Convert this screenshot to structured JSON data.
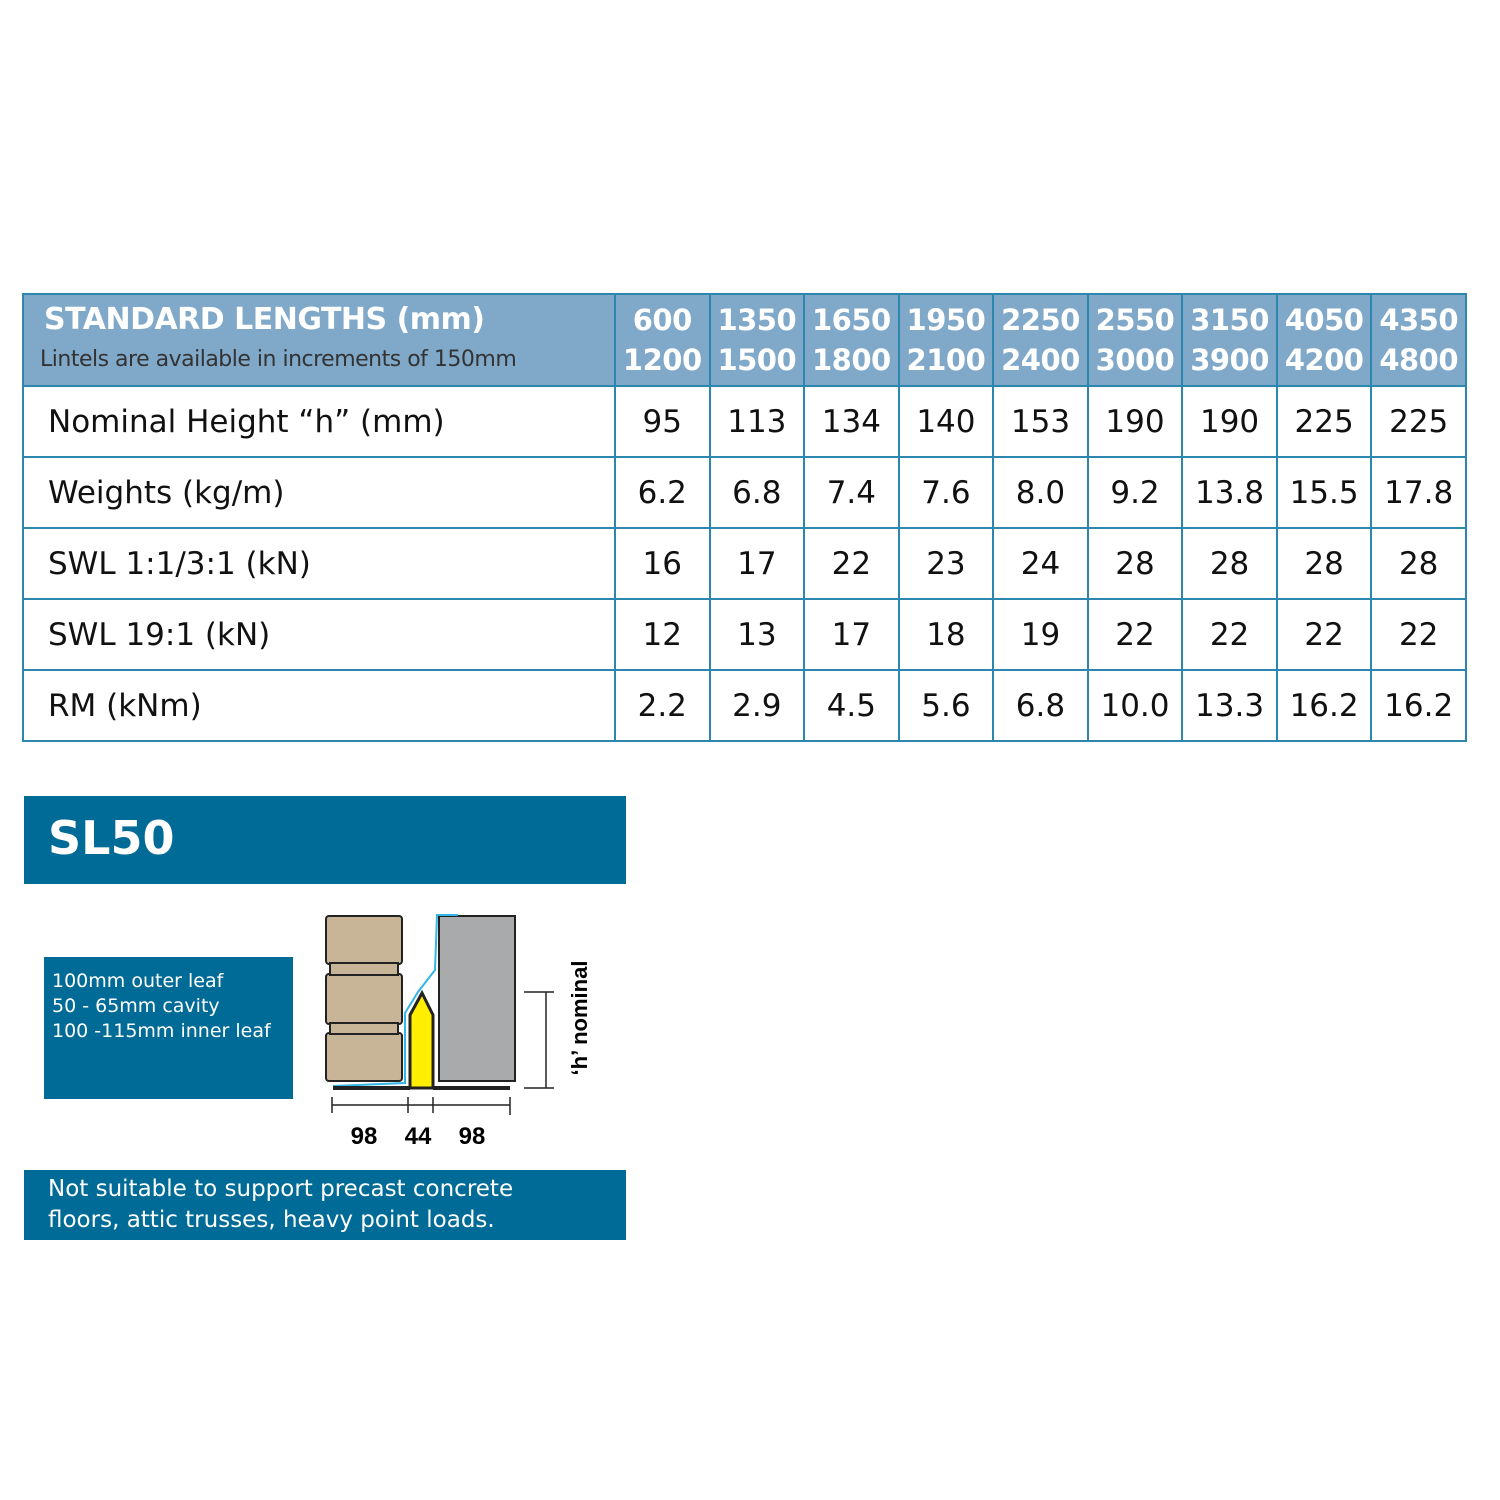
{
  "table": {
    "header_title": "STANDARD LENGTHS (mm)",
    "header_subtitle": "Lintels are available in increments of 150mm",
    "lengths": [
      [
        "600",
        "1200"
      ],
      [
        "1350",
        "1500"
      ],
      [
        "1650",
        "1800"
      ],
      [
        "1950",
        "2100"
      ],
      [
        "2250",
        "2400"
      ],
      [
        "2550",
        "3000"
      ],
      [
        "3150",
        "3900"
      ],
      [
        "4050",
        "4200"
      ],
      [
        "4350",
        "4800"
      ]
    ],
    "rows": [
      {
        "label": "Nominal Height “h” (mm)",
        "values": [
          "95",
          "113",
          "134",
          "140",
          "153",
          "190",
          "190",
          "225",
          "225"
        ]
      },
      {
        "label": "Weights (kg/m)",
        "values": [
          "6.2",
          "6.8",
          "7.4",
          "7.6",
          "8.0",
          "9.2",
          "13.8",
          "15.5",
          "17.8"
        ]
      },
      {
        "label": "SWL 1:1/3:1 (kN)",
        "values": [
          "16",
          "17",
          "22",
          "23",
          "24",
          "28",
          "28",
          "28",
          "28"
        ]
      },
      {
        "label": "SWL 19:1 (kN)",
        "values": [
          "12",
          "13",
          "17",
          "18",
          "19",
          "22",
          "22",
          "22",
          "22"
        ]
      },
      {
        "label": "RM (kNm)",
        "values": [
          "2.2",
          "2.9",
          "4.5",
          "5.6",
          "6.8",
          "10.0",
          "13.3",
          "16.2",
          "16.2"
        ]
      }
    ]
  },
  "product": {
    "name": "SL50",
    "specs": [
      "100mm outer leaf",
      "50 - 65mm cavity",
      "100 -115mm inner leaf"
    ],
    "note_line1": "Not suitable to support precast concrete",
    "note_line2": "floors, attic trusses, heavy point loads.",
    "diagram": {
      "dim_left": "98",
      "dim_mid": "44",
      "dim_right": "98",
      "height_label": "‘h’ nominal"
    }
  },
  "colors": {
    "header": "#80a8c9",
    "border": "#2d86ad",
    "banner": "#006b96",
    "lintel": "#ffee00",
    "brick": "#c8b497",
    "block": "#a9aaac"
  }
}
